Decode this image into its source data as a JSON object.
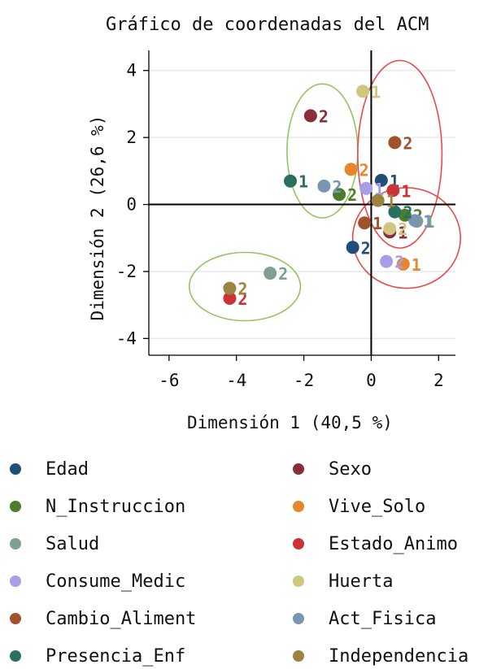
{
  "chart_data": {
    "type": "scatter",
    "title": "Gráfico de coordenadas del ACM",
    "xlabel": "Dimensión 1 (40,5 %)",
    "ylabel": "Dimensión 2 (26,6 %)",
    "xlim": [
      -6.6,
      2.5
    ],
    "ylim": [
      -4.5,
      4.6
    ],
    "xticks": [
      "-6",
      "-4",
      "-2",
      "0",
      "2"
    ],
    "yticks": [
      "4",
      "2",
      "0",
      "-2",
      "-4"
    ],
    "grid": "horizontal",
    "legend_position": "bottom",
    "series": [
      {
        "name": "Edad",
        "color": "#1f4e79",
        "points": [
          {
            "x": 0.3,
            "y": 0.72,
            "label": "1"
          },
          {
            "x": -0.55,
            "y": -1.28,
            "label": "2"
          }
        ]
      },
      {
        "name": "Sexo",
        "color": "#8b2c3c",
        "points": [
          {
            "x": -1.8,
            "y": 2.65,
            "label": "2"
          },
          {
            "x": 0.55,
            "y": -0.82,
            "label": "1"
          }
        ]
      },
      {
        "name": "N_Instruccion",
        "color": "#4e7d2a",
        "points": [
          {
            "x": -0.95,
            "y": 0.3,
            "label": "2"
          },
          {
            "x": 1.0,
            "y": -0.32,
            "label": "2"
          }
        ]
      },
      {
        "name": "Vive_Solo",
        "color": "#e8862a",
        "points": [
          {
            "x": -0.6,
            "y": 1.05,
            "label": "2"
          },
          {
            "x": 0.95,
            "y": -1.78,
            "label": "1"
          }
        ]
      },
      {
        "name": "Salud",
        "color": "#7fa08e",
        "points": [
          {
            "x": -3.0,
            "y": -2.05,
            "label": "2"
          },
          {
            "x": 1.35,
            "y": -0.5,
            "label": "1"
          }
        ]
      },
      {
        "name": "Estado_Animo",
        "color": "#cc3339",
        "points": [
          {
            "x": -4.2,
            "y": -2.8,
            "label": "2"
          },
          {
            "x": 0.65,
            "y": 0.42,
            "label": "1"
          }
        ]
      },
      {
        "name": "Consume_Medic",
        "color": "#a79ee6",
        "points": [
          {
            "x": -0.15,
            "y": 0.48,
            "label": "1"
          },
          {
            "x": 0.45,
            "y": -1.7,
            "label": "2"
          }
        ]
      },
      {
        "name": "Huerta",
        "color": "#cfc77e",
        "points": [
          {
            "x": -0.25,
            "y": 3.38,
            "label": "1"
          },
          {
            "x": 0.55,
            "y": -0.72,
            "label": "2"
          }
        ]
      },
      {
        "name": "Cambio_Aliment",
        "color": "#a0522d",
        "points": [
          {
            "x": 0.7,
            "y": 1.85,
            "label": "2"
          },
          {
            "x": -0.2,
            "y": -0.55,
            "label": "1"
          }
        ]
      },
      {
        "name": "Act_Fisica",
        "color": "#7a95b0",
        "points": [
          {
            "x": -1.4,
            "y": 0.55,
            "label": "2"
          },
          {
            "x": 1.3,
            "y": -0.48,
            "label": "1"
          }
        ]
      },
      {
        "name": "Presencia_Enf",
        "color": "#2a7060",
        "points": [
          {
            "x": -2.4,
            "y": 0.7,
            "label": "1"
          },
          {
            "x": 0.7,
            "y": -0.22,
            "label": "2"
          }
        ]
      },
      {
        "name": "Independencia",
        "color": "#9a8540",
        "points": [
          {
            "x": -4.2,
            "y": -2.5,
            "label": "2"
          },
          {
            "x": 0.2,
            "y": 0.12,
            "label": "1"
          }
        ]
      }
    ],
    "annotations": [
      {
        "shape": "ellipse",
        "color": "#94c463",
        "cx": -1.45,
        "cy": 1.6,
        "rx": 1.05,
        "ry": 2.0
      },
      {
        "shape": "ellipse",
        "color": "#94c463",
        "cx": -3.75,
        "cy": -2.45,
        "rx": 1.65,
        "ry": 1.02
      },
      {
        "shape": "ellipse",
        "color": "#e84a4a",
        "cx": 0.85,
        "cy": 1.5,
        "rx": 1.25,
        "ry": 2.8
      },
      {
        "shape": "ellipse",
        "color": "#e84a4a",
        "cx": 1.05,
        "cy": -1.0,
        "rx": 1.6,
        "ry": 1.5
      }
    ]
  },
  "legend": {
    "left": [
      {
        "label": "Edad",
        "color": "#1f4e79"
      },
      {
        "label": "N_Instruccion",
        "color": "#4e7d2a"
      },
      {
        "label": "Salud",
        "color": "#7fa08e"
      },
      {
        "label": "Consume_Medic",
        "color": "#a79ee6"
      },
      {
        "label": "Cambio_Aliment",
        "color": "#a0522d"
      },
      {
        "label": "Presencia_Enf",
        "color": "#2a7060"
      }
    ],
    "right": [
      {
        "label": "Sexo",
        "color": "#8b2c3c"
      },
      {
        "label": "Vive_Solo",
        "color": "#e8862a"
      },
      {
        "label": "Estado_Animo",
        "color": "#cc3339"
      },
      {
        "label": "Huerta",
        "color": "#cfc77e"
      },
      {
        "label": "Act_Fisica",
        "color": "#7a95b0"
      },
      {
        "label": "Independencia",
        "color": "#9a8540"
      }
    ]
  }
}
